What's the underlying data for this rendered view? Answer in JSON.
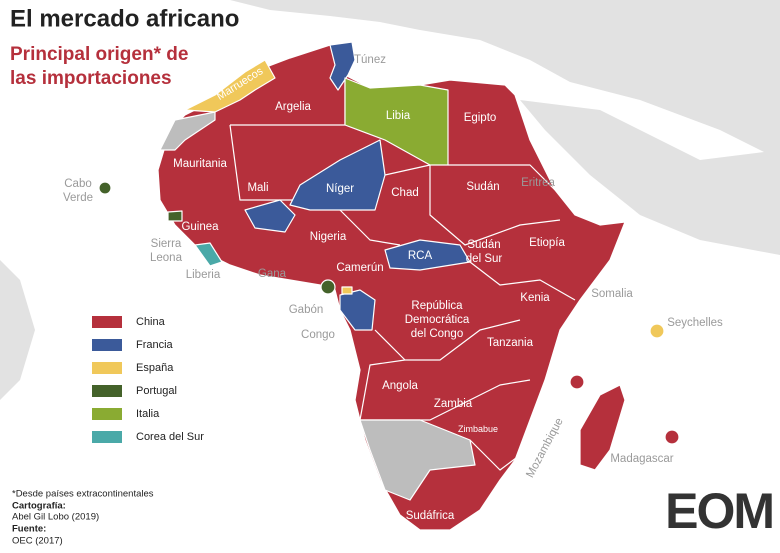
{
  "title": "El mercado africano",
  "subtitle": [
    "Principal origen* de",
    "las importaciones"
  ],
  "legend": [
    {
      "label": "China",
      "color": "#b5303c"
    },
    {
      "label": "Francia",
      "color": "#3b5a9a"
    },
    {
      "label": "España",
      "color": "#f0c85a"
    },
    {
      "label": "Portugal",
      "color": "#44622a"
    },
    {
      "label": "Italia",
      "color": "#8aab32"
    },
    {
      "label": "Corea del Sur",
      "color": "#4aa9a8"
    }
  ],
  "labels": [
    [
      "Túnez"
    ],
    [
      "Marruecos"
    ],
    [
      "Argelia"
    ],
    [
      "Libia"
    ],
    [
      "Egipto"
    ],
    [
      "Mauritania"
    ],
    [
      "Mali"
    ],
    [
      "Níger"
    ],
    [
      "Chad"
    ],
    [
      "Sudán"
    ],
    [
      "Eritrea"
    ],
    [
      "Cabo",
      "Verde"
    ],
    [
      "Guinea"
    ],
    [
      "Sierra",
      "Leona"
    ],
    [
      "Liberia"
    ],
    [
      "Gana"
    ],
    [
      "Nigeria"
    ],
    [
      "Camerún"
    ],
    [
      "RCA"
    ],
    [
      "Sudán",
      "del Sur"
    ],
    [
      "Etiopía"
    ],
    [
      "Somalia"
    ],
    [
      "Kenia"
    ],
    [
      "Gabón"
    ],
    [
      "Congo"
    ],
    [
      "República",
      "Democrática",
      "del Congo"
    ],
    [
      "Tanzania"
    ],
    [
      "Seychelles"
    ],
    [
      "Angola"
    ],
    [
      "Zambia"
    ],
    [
      "Zimbabue"
    ],
    [
      "Mozambique"
    ],
    [
      "Madagascar"
    ],
    [
      "Sudáfrica"
    ]
  ],
  "notes": {
    "footnote": "*Desde países extracontinentales",
    "cartography_label": "Cartografía:",
    "cartography": "Abel Gil Lobo (2019)",
    "source_label": "Fuente:",
    "source": "OEC (2017)"
  },
  "logo": "EOM"
}
